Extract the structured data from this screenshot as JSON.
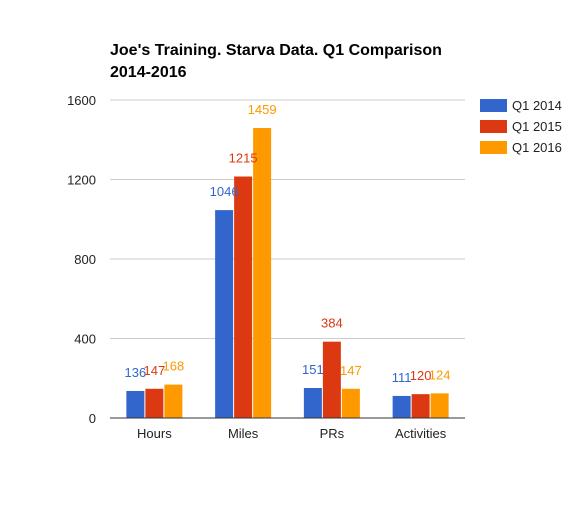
{
  "chart_data": {
    "type": "bar",
    "title_lines": [
      "Joe's Training. Starva Data. Q1 Comparison",
      "2014-2016"
    ],
    "categories": [
      "Hours",
      "Miles",
      "PRs",
      "Activities"
    ],
    "series": [
      {
        "name": "Q1 2014",
        "color": "#3366cc",
        "values": [
          136,
          1046,
          151,
          111
        ]
      },
      {
        "name": "Q1 2015",
        "color": "#dc3912",
        "values": [
          147,
          1215,
          384,
          120
        ]
      },
      {
        "name": "Q1 2016",
        "color": "#ff9900",
        "values": [
          168,
          1459,
          147,
          124
        ]
      }
    ],
    "ylim": [
      0,
      1600
    ],
    "yticks": [
      0,
      400,
      800,
      1200,
      1600
    ],
    "grid": true,
    "legend_position": "right"
  }
}
